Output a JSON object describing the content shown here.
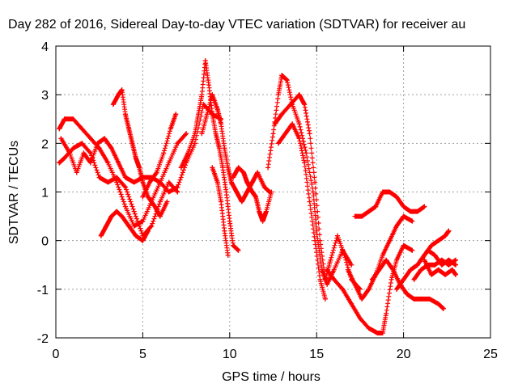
{
  "chart_data": {
    "type": "scatter",
    "title": "Day 282 of 2016, Sidereal Day-to-day VTEC variation (SDTVAR) for receiver au",
    "xlabel": "GPS time / hours",
    "ylabel": "SDTVAR / TECUs",
    "xlim": [
      0,
      25
    ],
    "ylim": [
      -2,
      4
    ],
    "x_ticks": [
      "0",
      "5",
      "10",
      "15",
      "20",
      "25"
    ],
    "y_ticks": [
      "-2",
      "-1",
      "0",
      "1",
      "2",
      "3",
      "4"
    ],
    "grid": true,
    "legend": "none",
    "marker": "plus",
    "color": "#ff0000",
    "series": [
      {
        "points": [
          [
            0.2,
            2.3
          ],
          [
            0.5,
            2.5
          ],
          [
            1.0,
            2.5
          ],
          [
            1.5,
            2.3
          ],
          [
            2.0,
            2.1
          ],
          [
            2.5,
            1.9
          ],
          [
            3.0,
            1.6
          ],
          [
            3.5,
            1.2
          ],
          [
            4.0,
            0.7
          ],
          [
            4.5,
            0.3
          ],
          [
            5.0,
            0.4
          ],
          [
            5.5,
            0.8
          ],
          [
            6.0,
            1.2
          ],
          [
            6.5,
            1.6
          ],
          [
            7.0,
            2.0
          ],
          [
            7.5,
            2.2
          ]
        ]
      },
      {
        "points": [
          [
            0.2,
            1.6
          ],
          [
            0.5,
            1.7
          ],
          [
            1.0,
            1.9
          ],
          [
            1.5,
            2.0
          ],
          [
            2.0,
            1.8
          ],
          [
            2.5,
            1.3
          ],
          [
            3.0,
            1.2
          ],
          [
            3.5,
            1.3
          ],
          [
            4.0,
            1.1
          ],
          [
            4.5,
            0.6
          ],
          [
            5.0,
            0.1
          ],
          [
            5.5,
            0.3
          ],
          [
            6.0,
            0.8
          ],
          [
            6.5,
            1.2
          ],
          [
            7.0,
            1.0
          ]
        ]
      },
      {
        "points": [
          [
            0.3,
            2.1
          ],
          [
            0.8,
            1.8
          ],
          [
            1.2,
            1.4
          ],
          [
            1.6,
            1.8
          ],
          [
            2.0,
            1.6
          ],
          [
            2.4,
            2.0
          ],
          [
            2.8,
            2.1
          ],
          [
            3.2,
            1.9
          ],
          [
            3.6,
            1.6
          ],
          [
            4.0,
            1.3
          ],
          [
            4.5,
            1.2
          ],
          [
            5.0,
            1.3
          ],
          [
            5.5,
            1.3
          ],
          [
            6.0,
            1.2
          ],
          [
            6.5,
            1.0
          ],
          [
            7.0,
            1.1
          ],
          [
            7.5,
            1.6
          ],
          [
            8.0,
            2.0
          ],
          [
            8.5,
            2.8
          ],
          [
            9.0,
            2.6
          ],
          [
            9.5,
            2.5
          ]
        ]
      },
      {
        "points": [
          [
            3.3,
            2.8
          ],
          [
            3.6,
            3.0
          ],
          [
            3.8,
            3.1
          ],
          [
            4.0,
            2.6
          ],
          [
            4.2,
            2.3
          ],
          [
            4.4,
            2.0
          ],
          [
            4.6,
            1.7
          ],
          [
            4.8,
            1.5
          ],
          [
            5.0,
            1.2
          ],
          [
            5.3,
            0.9
          ],
          [
            5.7,
            0.7
          ],
          [
            6.0,
            0.5
          ],
          [
            6.4,
            0.8
          ]
        ]
      },
      {
        "points": [
          [
            2.6,
            0.1
          ],
          [
            2.9,
            0.3
          ],
          [
            3.2,
            0.5
          ],
          [
            3.5,
            0.6
          ],
          [
            3.8,
            0.5
          ],
          [
            4.2,
            0.3
          ],
          [
            4.6,
            0.1
          ],
          [
            5.0,
            0.0
          ],
          [
            5.3,
            0.2
          ]
        ]
      },
      {
        "points": [
          [
            5.0,
            0.9
          ],
          [
            5.4,
            1.2
          ],
          [
            5.8,
            1.4
          ],
          [
            6.2,
            1.8
          ],
          [
            6.6,
            2.3
          ],
          [
            6.9,
            2.6
          ]
        ]
      },
      {
        "points": [
          [
            7.2,
            1.5
          ],
          [
            7.6,
            1.8
          ],
          [
            8.0,
            2.2
          ],
          [
            8.2,
            2.6
          ],
          [
            8.4,
            3.0
          ],
          [
            8.6,
            3.7
          ],
          [
            8.8,
            3.2
          ],
          [
            9.0,
            2.6
          ],
          [
            9.2,
            2.2
          ],
          [
            9.4,
            1.9
          ],
          [
            9.6,
            1.5
          ],
          [
            9.8,
            1.0
          ],
          [
            10.0,
            0.4
          ],
          [
            10.2,
            -0.1
          ],
          [
            10.5,
            -0.2
          ]
        ]
      },
      {
        "points": [
          [
            8.4,
            2.2
          ],
          [
            8.7,
            2.6
          ],
          [
            9.0,
            3.0
          ],
          [
            9.3,
            2.7
          ],
          [
            9.5,
            2.4
          ],
          [
            9.7,
            1.9
          ],
          [
            9.9,
            1.5
          ],
          [
            10.1,
            1.2
          ],
          [
            10.4,
            1.0
          ],
          [
            10.7,
            0.8
          ],
          [
            11.0,
            1.0
          ],
          [
            11.3,
            1.2
          ],
          [
            11.6,
            1.4
          ],
          [
            12.0,
            1.1
          ],
          [
            12.3,
            1.0
          ]
        ]
      },
      {
        "points": [
          [
            9.0,
            1.5
          ],
          [
            9.3,
            1.2
          ],
          [
            9.5,
            0.8
          ],
          [
            9.7,
            0.2
          ],
          [
            9.9,
            -0.3
          ]
        ]
      },
      {
        "points": [
          [
            10.2,
            1.3
          ],
          [
            10.5,
            1.5
          ],
          [
            10.8,
            1.4
          ],
          [
            11.0,
            1.2
          ],
          [
            11.3,
            1.0
          ],
          [
            11.5,
            0.9
          ],
          [
            11.7,
            0.6
          ],
          [
            11.9,
            0.4
          ],
          [
            12.1,
            0.6
          ],
          [
            12.4,
            1.0
          ]
        ]
      },
      {
        "points": [
          [
            12.2,
            1.5
          ],
          [
            12.5,
            2.2
          ],
          [
            12.8,
            3.0
          ],
          [
            13.0,
            3.4
          ],
          [
            13.3,
            3.3
          ],
          [
            13.6,
            2.8
          ],
          [
            14.0,
            2.4
          ],
          [
            14.4,
            1.8
          ],
          [
            14.8,
            1.0
          ],
          [
            15.0,
            0.2
          ],
          [
            15.3,
            -0.6
          ],
          [
            15.6,
            -0.9
          ],
          [
            16.0,
            -0.6
          ],
          [
            16.5,
            -0.2
          ],
          [
            17.0,
            -0.5
          ]
        ]
      },
      {
        "points": [
          [
            12.6,
            2.4
          ],
          [
            13.0,
            2.6
          ],
          [
            13.5,
            2.8
          ],
          [
            14.0,
            3.0
          ],
          [
            14.3,
            2.8
          ],
          [
            14.6,
            2.2
          ],
          [
            14.9,
            1.2
          ],
          [
            15.2,
            0.0
          ],
          [
            15.5,
            -0.8
          ],
          [
            15.8,
            -0.4
          ],
          [
            16.2,
            0.1
          ],
          [
            16.6,
            -0.3
          ],
          [
            17.0,
            -0.8
          ],
          [
            17.5,
            -1.0
          ]
        ]
      },
      {
        "points": [
          [
            12.8,
            2.0
          ],
          [
            13.2,
            2.2
          ],
          [
            13.6,
            2.4
          ],
          [
            14.0,
            2.1
          ],
          [
            14.3,
            1.6
          ],
          [
            14.6,
            0.8
          ],
          [
            14.9,
            0.0
          ],
          [
            15.2,
            -0.8
          ],
          [
            15.5,
            -1.2
          ]
        ]
      },
      {
        "points": [
          [
            15.6,
            -0.6
          ],
          [
            16.0,
            -0.8
          ],
          [
            16.5,
            -1.0
          ],
          [
            17.0,
            -1.3
          ],
          [
            17.5,
            -1.6
          ],
          [
            18.0,
            -1.8
          ],
          [
            18.5,
            -1.9
          ],
          [
            18.8,
            -1.9
          ],
          [
            19.0,
            -1.5
          ],
          [
            19.3,
            -0.8
          ],
          [
            19.6,
            -0.4
          ],
          [
            20.0,
            -0.1
          ],
          [
            20.5,
            -0.2
          ]
        ]
      },
      {
        "points": [
          [
            17.2,
            0.5
          ],
          [
            17.6,
            0.5
          ],
          [
            18.0,
            0.6
          ],
          [
            18.4,
            0.7
          ],
          [
            18.8,
            1.0
          ],
          [
            19.2,
            1.0
          ],
          [
            19.6,
            0.9
          ],
          [
            20.0,
            0.7
          ],
          [
            20.4,
            0.6
          ],
          [
            20.8,
            0.6
          ],
          [
            21.2,
            0.7
          ]
        ]
      },
      {
        "points": [
          [
            16.8,
            -0.6
          ],
          [
            17.2,
            -0.9
          ],
          [
            17.6,
            -1.2
          ],
          [
            18.0,
            -1.0
          ],
          [
            18.4,
            -0.7
          ],
          [
            18.8,
            -0.3
          ],
          [
            19.2,
            0.0
          ],
          [
            19.6,
            0.3
          ],
          [
            20.0,
            0.5
          ],
          [
            20.5,
            0.4
          ]
        ]
      },
      {
        "points": [
          [
            18.2,
            -0.8
          ],
          [
            18.6,
            -0.6
          ],
          [
            19.0,
            -0.4
          ],
          [
            19.4,
            -0.6
          ],
          [
            19.8,
            -0.9
          ],
          [
            20.2,
            -1.1
          ],
          [
            20.6,
            -1.2
          ],
          [
            21.0,
            -1.2
          ],
          [
            21.5,
            -1.2
          ],
          [
            22.0,
            -1.3
          ],
          [
            22.3,
            -1.4
          ]
        ]
      },
      {
        "points": [
          [
            19.6,
            -1.0
          ],
          [
            20.0,
            -0.8
          ],
          [
            20.4,
            -0.6
          ],
          [
            20.8,
            -0.5
          ],
          [
            21.2,
            -0.3
          ],
          [
            21.6,
            -0.1
          ],
          [
            22.0,
            0.0
          ],
          [
            22.4,
            0.1
          ],
          [
            22.6,
            0.2
          ]
        ]
      },
      {
        "points": [
          [
            20.6,
            -0.8
          ],
          [
            21.0,
            -0.6
          ],
          [
            21.4,
            -0.5
          ],
          [
            21.8,
            -0.5
          ],
          [
            22.2,
            -0.4
          ],
          [
            22.6,
            -0.5
          ],
          [
            23.0,
            -0.4
          ]
        ]
      },
      {
        "points": [
          [
            21.2,
            -0.4
          ],
          [
            21.6,
            -0.7
          ],
          [
            22.0,
            -0.6
          ],
          [
            22.4,
            -0.7
          ],
          [
            22.8,
            -0.6
          ],
          [
            23.0,
            -0.7
          ]
        ]
      },
      {
        "points": [
          [
            21.0,
            -0.4
          ],
          [
            21.4,
            -0.2
          ],
          [
            21.8,
            -0.3
          ],
          [
            22.2,
            -0.5
          ],
          [
            22.6,
            -0.4
          ],
          [
            23.0,
            -0.5
          ]
        ]
      }
    ]
  }
}
